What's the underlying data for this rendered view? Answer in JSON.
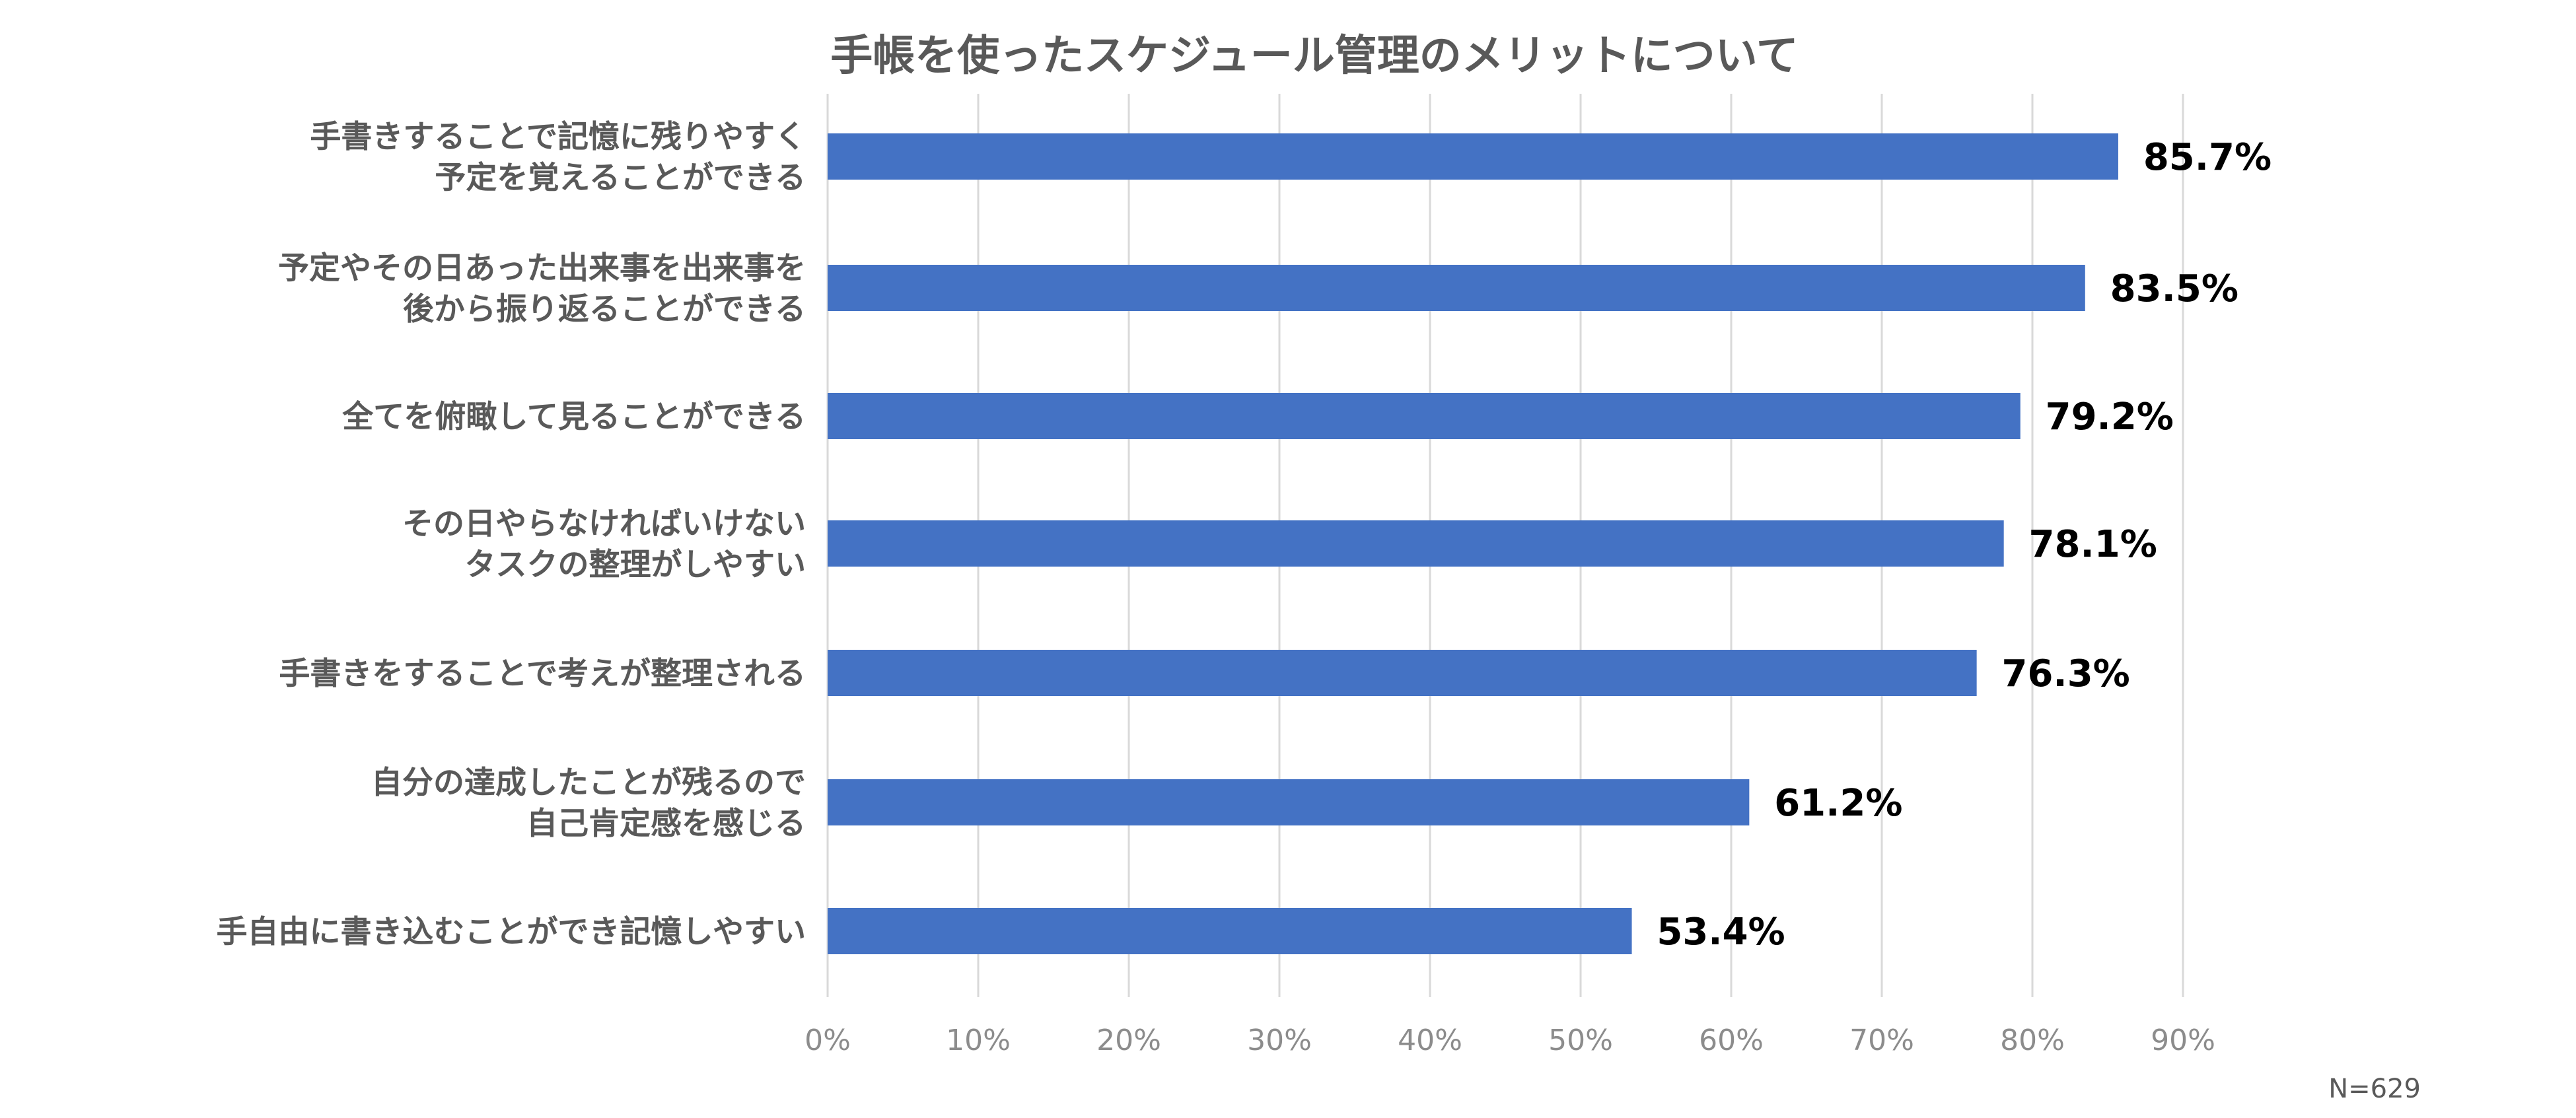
{
  "chart_data": {
    "type": "bar",
    "orientation": "horizontal",
    "title": "手帳を使ったスケジュール管理のメリットについて",
    "xlabel": "",
    "ylabel": "",
    "xlim": [
      0,
      90
    ],
    "ticks": [
      "0%",
      "10%",
      "20%",
      "30%",
      "40%",
      "50%",
      "60%",
      "70%",
      "80%",
      "90%"
    ],
    "grid": true,
    "categories": [
      [
        "手書きすることで記憶に残りやすく",
        "予定を覚えることができる"
      ],
      [
        "予定やその日あった出来事を出来事を",
        "後から振り返ることができる"
      ],
      [
        "全てを俯瞰して見ることができる"
      ],
      [
        "その日やらなければいけない",
        "タスクの整理がしやすい"
      ],
      [
        "手書きをすることで考えが整理される"
      ],
      [
        "自分の達成したことが残るので",
        "自己肯定感を感じる"
      ],
      [
        "手自由に書き込むことができ記憶しやすい"
      ]
    ],
    "values": [
      85.7,
      83.5,
      79.2,
      78.1,
      76.3,
      61.2,
      53.4
    ],
    "data_labels": [
      "85.7%",
      "83.5%",
      "79.2%",
      "78.1%",
      "76.3%",
      "61.2%",
      "53.4%"
    ],
    "bar_color": "#4472c4",
    "note": "N=629"
  }
}
